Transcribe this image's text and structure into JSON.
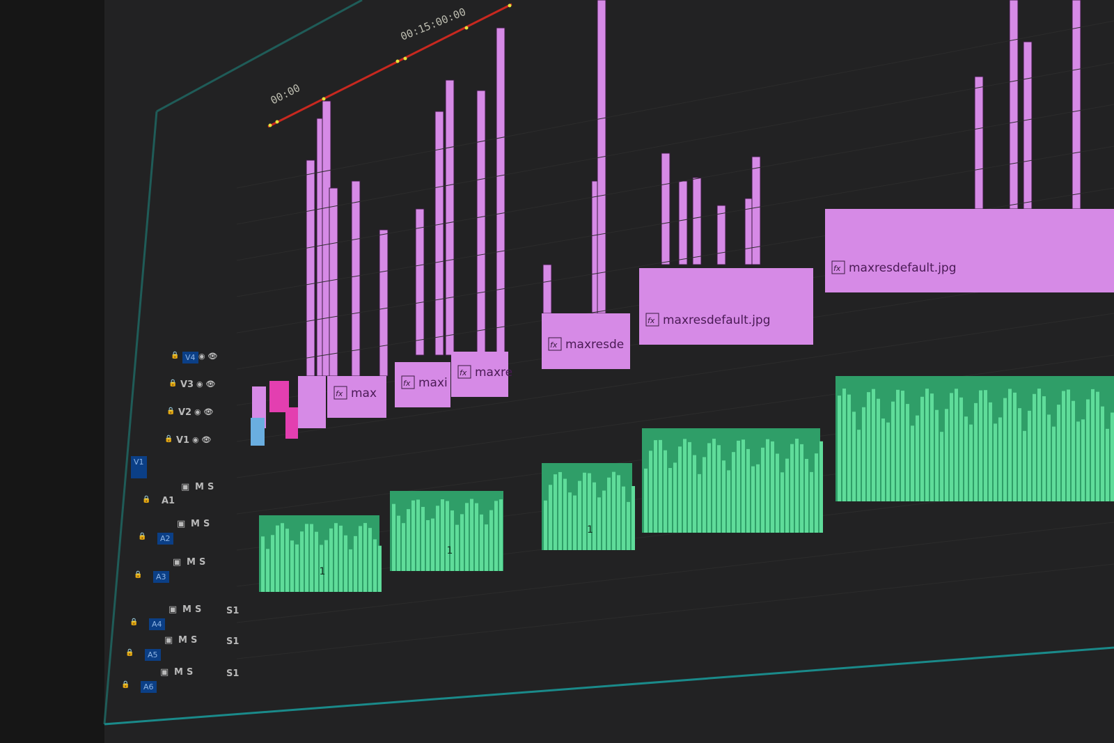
{
  "timeline": {
    "timecode_ruler": [
      "00:00",
      "00:15:00:00"
    ],
    "ruler_color": "#c8281f",
    "marker_color": "#e6e23a",
    "video_clip_color": "#d68ae6",
    "audio_clip_color": "#5fdc9a",
    "clips_video": [
      {
        "label": "max",
        "fx": "fx"
      },
      {
        "label": "maxi",
        "fx": "fx"
      },
      {
        "label": "maxre",
        "fx": "fx"
      },
      {
        "label": "maxresde",
        "fx": "fx"
      },
      {
        "label": "maxresdefault.jpg",
        "fx": "fx"
      },
      {
        "label": "maxresdefault.jpg",
        "fx": "fx"
      }
    ],
    "audio_clip_markers": [
      "1",
      "1",
      "1"
    ]
  },
  "tracks": {
    "source_patch_video": "V1",
    "video": [
      "V4",
      "V3",
      "V2",
      "V1"
    ],
    "audio": [
      {
        "name": "A1",
        "m": "M",
        "s": "S",
        "submix": ""
      },
      {
        "name": "A2",
        "m": "M",
        "s": "S",
        "submix": ""
      },
      {
        "name": "A3",
        "m": "M",
        "s": "S",
        "submix": ""
      },
      {
        "name": "A4",
        "m": "M",
        "s": "S",
        "submix": "S1"
      },
      {
        "name": "A5",
        "m": "M",
        "s": "S",
        "submix": "S1"
      },
      {
        "name": "A6",
        "m": "M",
        "s": "S",
        "submix": "S1"
      }
    ]
  }
}
